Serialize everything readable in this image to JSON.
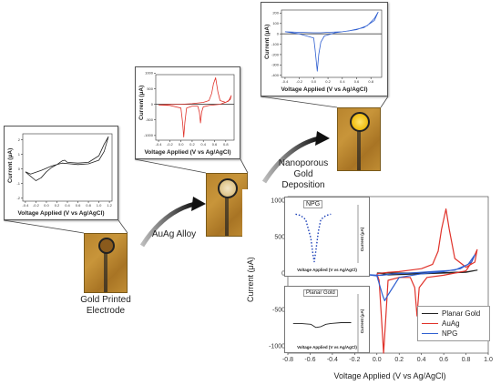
{
  "steps": {
    "step1": "Gold Printed Electrode",
    "step2": "AuAg Alloy",
    "step3": "Nanoporous Gold Deposition"
  },
  "panels": {
    "gold": {
      "ylabel": "Current (μA)",
      "xlabel": "Voltage Applied (V vs Ag/AgCl)"
    },
    "auag": {
      "ylabel": "Current (μA)",
      "xlabel": "Voltage Applied (V vs Ag/AgCl)"
    },
    "npg": {
      "ylabel": "Current (μA)",
      "xlabel": "Voltage Applied (V vs Ag/AgCl)"
    }
  },
  "main_chart": {
    "ylabel": "Current (μA)",
    "xlabel": "Voltage Applied (V vs Ag/AgCl)",
    "inset_npg_title": "NPG",
    "inset_planar_title": "Planar Gold",
    "inset_ylabel": "Current (μA)",
    "inset_xlabel": "Voltage Applied (V vs Ag/AgCl)",
    "legend": [
      "Planar Gold",
      "AuAg",
      "NPG"
    ]
  },
  "colors": {
    "planar_gold": "#222222",
    "auag": "#e0332b",
    "npg": "#2f5fd0",
    "npg_dots": "#1a3fb8",
    "gold_chip": "#c8953a"
  },
  "chart_data": [
    {
      "type": "line",
      "name": "main",
      "xlabel": "Voltage Applied (V vs Ag/AgCl)",
      "ylabel": "Current (μA)",
      "xlim": [
        -0.8,
        1.0
      ],
      "ylim": [
        -1100,
        1050
      ],
      "xticks": [
        "-0.8",
        "-0.6",
        "-0.4",
        "-0.2",
        "0.0",
        "0.2",
        "0.4",
        "0.6",
        "0.8",
        "1.0"
      ],
      "yticks": [
        "1000",
        "500",
        "0",
        "-500",
        "-1000"
      ],
      "xtick_values": [
        -0.8,
        -0.6,
        -0.4,
        -0.2,
        0.0,
        0.2,
        0.4,
        0.6,
        0.8,
        1.0
      ],
      "ytick_values": [
        1000,
        500,
        0,
        -500,
        -1000
      ],
      "series": [
        {
          "name": "Planar Gold",
          "x": [
            0.0,
            0.2,
            0.4,
            0.6,
            0.8,
            0.9,
            0.8,
            0.6,
            0.4,
            0.2,
            0.1,
            0.05,
            0.0
          ],
          "y": [
            0,
            0,
            0,
            5,
            15,
            40,
            10,
            0,
            -10,
            -20,
            -25,
            -10,
            0
          ]
        },
        {
          "name": "AuAg",
          "x": [
            0.0,
            0.1,
            0.2,
            0.3,
            0.4,
            0.5,
            0.55,
            0.58,
            0.62,
            0.65,
            0.7,
            0.8,
            0.88,
            0.9,
            0.85,
            0.8,
            0.6,
            0.45,
            0.38,
            0.36,
            0.34,
            0.3,
            0.2,
            0.1,
            0.08,
            0.06,
            0.04,
            0.02,
            0.0
          ],
          "y": [
            -10,
            10,
            20,
            40,
            60,
            120,
            300,
            600,
            880,
            600,
            200,
            80,
            150,
            320,
            150,
            30,
            -30,
            -60,
            -200,
            -590,
            -200,
            -60,
            -60,
            -100,
            -600,
            -1100,
            -600,
            -100,
            -10
          ]
        },
        {
          "name": "NPG",
          "x": [
            -0.1,
            0.0,
            0.05,
            0.07,
            0.1,
            0.2,
            0.4,
            0.6,
            0.75,
            0.85,
            0.88,
            0.82,
            0.7,
            0.5,
            0.3,
            0.15,
            0.1,
            0.05,
            0.0,
            -0.1
          ],
          "y": [
            -20,
            -40,
            -300,
            -380,
            -300,
            -60,
            -10,
            20,
            60,
            150,
            250,
            120,
            40,
            20,
            0,
            -10,
            -20,
            -30,
            -30,
            -20
          ]
        }
      ]
    },
    {
      "type": "line",
      "name": "gold_panel",
      "xlim": [
        -0.45,
        1.25
      ],
      "ylim": [
        -2.2,
        2.4
      ],
      "xticks": [
        "-0.4",
        "-0.2",
        "0.0",
        "0.2",
        "0.4",
        "0.6",
        "0.8",
        "1.0",
        "1.2"
      ],
      "yticks": [
        "2",
        "1",
        "0",
        "-1",
        "-2"
      ],
      "xtick_values": [
        -0.4,
        -0.2,
        0.0,
        0.2,
        0.4,
        0.6,
        0.8,
        1.0,
        1.2
      ],
      "ytick_values": [
        2,
        1,
        0,
        -1,
        -2
      ],
      "series": [
        {
          "x": [
            -0.4,
            -0.3,
            -0.1,
            0.1,
            0.2,
            0.3,
            0.35,
            0.4,
            0.6,
            0.8,
            1.0,
            1.1,
            1.18,
            1.1,
            1.0,
            0.8,
            0.6,
            0.45,
            0.3,
            0.2,
            0.1,
            0.0,
            -0.1,
            -0.2,
            -0.3,
            -0.4
          ],
          "y": [
            -0.2,
            -0.35,
            -0.1,
            0.2,
            0.3,
            0.55,
            0.6,
            0.45,
            0.4,
            0.45,
            0.9,
            1.7,
            2.2,
            1.2,
            0.6,
            0.35,
            0.3,
            0.35,
            0.4,
            0.3,
            0.1,
            -0.2,
            -0.6,
            -0.8,
            -0.5,
            -0.2
          ]
        }
      ]
    },
    {
      "type": "line",
      "name": "auag_panel",
      "xlim": [
        -0.45,
        0.95
      ],
      "ylim": [
        -1150,
        950
      ],
      "xticks": [
        "-0.4",
        "-0.2",
        "0.0",
        "0.2",
        "0.4",
        "0.6",
        "0.8"
      ],
      "yticks": [
        "1000",
        "500",
        "0",
        "-500",
        "-1000"
      ],
      "xtick_values": [
        -0.4,
        -0.2,
        0.0,
        0.2,
        0.4,
        0.6,
        0.8
      ],
      "ytick_values": [
        1000,
        500,
        0,
        -500,
        -1000
      ],
      "series": [
        {
          "x": [
            -0.4,
            -0.2,
            0.0,
            0.2,
            0.4,
            0.5,
            0.55,
            0.58,
            0.62,
            0.66,
            0.7,
            0.8,
            0.88,
            0.9,
            0.85,
            0.7,
            0.5,
            0.4,
            0.37,
            0.35,
            0.33,
            0.3,
            0.2,
            0.1,
            0.07,
            0.05,
            0.03,
            0.0,
            -0.2,
            -0.4
          ],
          "y": [
            -20,
            -10,
            0,
            20,
            60,
            120,
            350,
            650,
            850,
            400,
            120,
            60,
            150,
            280,
            100,
            0,
            -40,
            -80,
            -250,
            -600,
            -250,
            -60,
            -60,
            -120,
            -600,
            -1050,
            -600,
            -120,
            -40,
            -20
          ]
        }
      ]
    },
    {
      "type": "line",
      "name": "npg_panel",
      "xlim": [
        -0.45,
        0.95
      ],
      "ylim": [
        -420,
        230
      ],
      "xticks": [
        "-0.4",
        "-0.2",
        "0.0",
        "0.2",
        "0.4",
        "0.6",
        "0.8"
      ],
      "yticks": [
        "200",
        "100",
        "0",
        "-100",
        "-200",
        "-300",
        "-400"
      ],
      "xtick_values": [
        -0.4,
        -0.2,
        0.0,
        0.2,
        0.4,
        0.6,
        0.8
      ],
      "ytick_values": [
        200,
        100,
        0,
        -100,
        -200,
        -300,
        -400
      ],
      "series": [
        {
          "x": [
            -0.4,
            -0.2,
            0.0,
            0.1,
            0.2,
            0.4,
            0.6,
            0.75,
            0.85,
            0.9,
            0.85,
            0.7,
            0.5,
            0.3,
            0.15,
            0.1,
            0.07,
            0.05,
            0.02,
            0.0,
            -0.2,
            -0.4
          ],
          "y": [
            20,
            15,
            10,
            10,
            15,
            20,
            40,
            80,
            150,
            210,
            130,
            60,
            30,
            10,
            -20,
            -80,
            -200,
            -360,
            -150,
            -40,
            0,
            20
          ]
        }
      ]
    },
    {
      "type": "line",
      "name": "inset_npg",
      "xlim": [
        -0.4,
        0.9
      ],
      "ylim": [
        -390,
        10
      ],
      "series": [
        {
          "x": [
            -0.3,
            -0.2,
            -0.1,
            0.0,
            0.05,
            0.07,
            0.1,
            0.15,
            0.2,
            0.3,
            0.4
          ],
          "y": [
            -20,
            -30,
            -60,
            -200,
            -340,
            -380,
            -300,
            -150,
            -60,
            -30,
            -20
          ]
        }
      ]
    },
    {
      "type": "line",
      "name": "inset_planar",
      "xlim": [
        -0.4,
        0.9
      ],
      "ylim": [
        -50,
        50
      ],
      "series": [
        {
          "x": [
            -0.35,
            -0.2,
            0.0,
            0.1,
            0.2,
            0.3,
            0.4,
            0.6,
            0.8
          ],
          "y": [
            -10,
            -10,
            -12,
            -20,
            -18,
            -12,
            -10,
            -8,
            -8
          ]
        }
      ]
    }
  ]
}
